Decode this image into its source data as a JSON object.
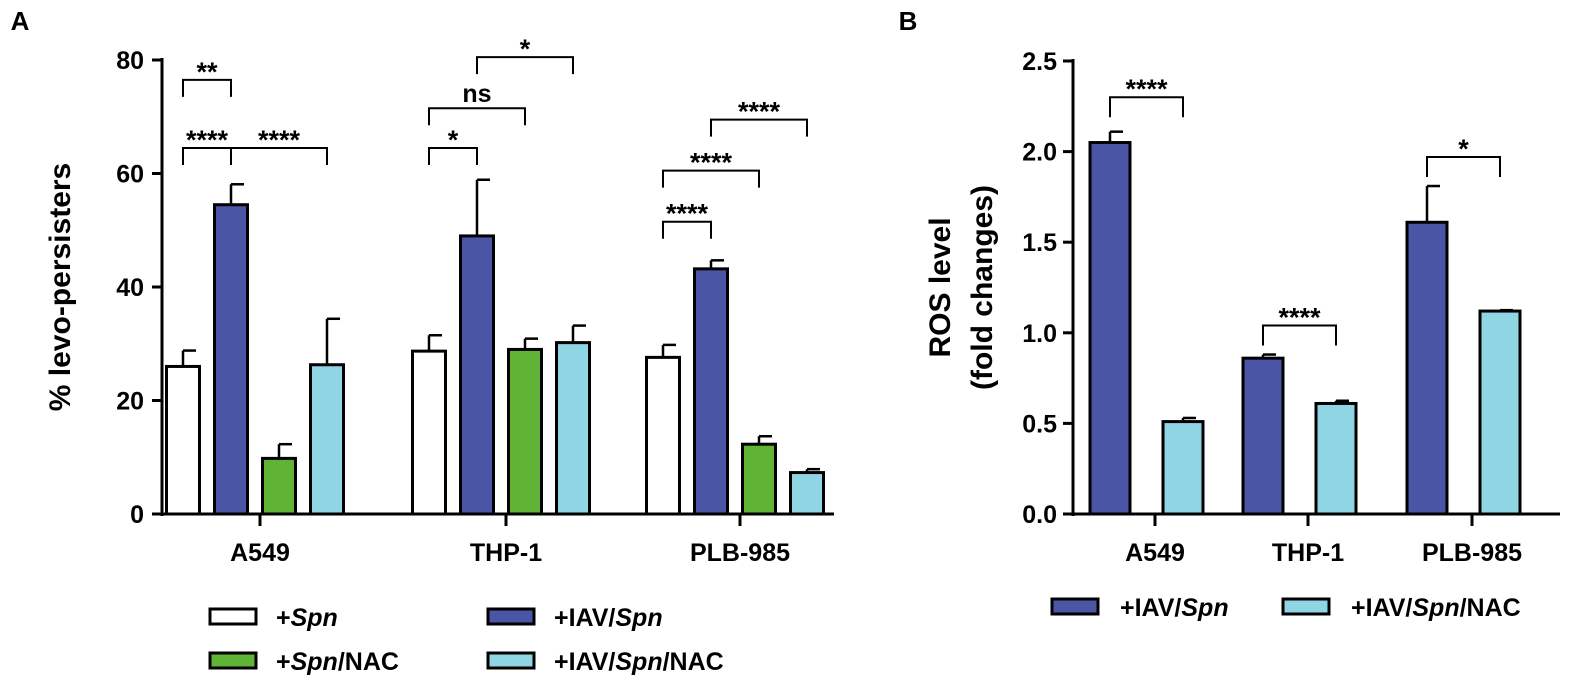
{
  "chart_data": [
    {
      "panel": "A",
      "type": "bar",
      "title": "",
      "ylabel": "% levo-persisters",
      "xlabel": "",
      "ylim": [
        0,
        80
      ],
      "yticks": [
        "0",
        "20",
        "40",
        "60",
        "80"
      ],
      "categories": [
        "A549",
        "THP-1",
        "PLB-985"
      ],
      "series": [
        {
          "name": "+Spn",
          "color": "#ffffff",
          "values": [
            26,
            28.7,
            27.6
          ],
          "errors": [
            2.8,
            2.8,
            2.2
          ]
        },
        {
          "name": "+IAV/Spn",
          "color": "#4a55a6",
          "values": [
            54.5,
            49,
            43.2
          ],
          "errors": [
            3.6,
            9.9,
            1.5
          ]
        },
        {
          "name": "+Spn/NAC",
          "color": "#5fb436",
          "values": [
            9.8,
            29,
            12.3
          ],
          "errors": [
            2.5,
            1.9,
            1.4
          ]
        },
        {
          "name": "+IAV/Spn/NAC",
          "color": "#8fd5e3",
          "values": [
            26.3,
            30.2,
            7.3
          ],
          "errors": [
            8.1,
            3.0,
            0.6
          ]
        }
      ],
      "legend_entries": [
        {
          "prefix": "+",
          "italic": "Spn",
          "suffix": "",
          "color": "#ffffff"
        },
        {
          "prefix": "+IAV/",
          "italic": "Spn",
          "suffix": "",
          "color": "#4a55a6"
        },
        {
          "prefix": "+",
          "italic": "Spn",
          "suffix": "/NAC",
          "color": "#5fb436"
        },
        {
          "prefix": "+IAV/",
          "italic": "Spn",
          "suffix": "/NAC",
          "color": "#8fd5e3"
        }
      ],
      "significance": [
        {
          "group": 0,
          "from": 0,
          "to": 1,
          "label": "**",
          "level": 76.5
        },
        {
          "group": 0,
          "from": 0,
          "to": 1,
          "label": "****",
          "level": 64.5
        },
        {
          "group": 0,
          "from": 1,
          "to": 3,
          "label": "****",
          "level": 64.5
        },
        {
          "group": 1,
          "from": 0,
          "to": 2,
          "label": "ns",
          "level": 71.5
        },
        {
          "group": 1,
          "from": 1,
          "to": 3,
          "label": "*",
          "level": 80.5
        },
        {
          "group": 1,
          "from": 0,
          "to": 1,
          "label": "*",
          "level": 64.5
        },
        {
          "group": 2,
          "from": 0,
          "to": 2,
          "label": "****",
          "level": 60.5
        },
        {
          "group": 2,
          "from": 1,
          "to": 3,
          "label": "****",
          "level": 69.5
        },
        {
          "group": 2,
          "from": 0,
          "to": 1,
          "label": "****",
          "level": 51.5
        }
      ]
    },
    {
      "panel": "B",
      "type": "bar",
      "title": "",
      "ylabel_lines": [
        "ROS level",
        "(fold changes)"
      ],
      "xlabel": "",
      "ylim": [
        0,
        2.5
      ],
      "yticks": [
        "0.0",
        "0.5",
        "1.0",
        "1.5",
        "2.0",
        "2.5"
      ],
      "categories": [
        "A549",
        "THP-1",
        "PLB-985"
      ],
      "series": [
        {
          "name": "+IAV/Spn",
          "color": "#4a55a6",
          "values": [
            2.05,
            0.86,
            1.61
          ],
          "errors": [
            0.06,
            0.02,
            0.2
          ]
        },
        {
          "name": "+IAV/Spn/NAC",
          "color": "#8fd5e3",
          "values": [
            0.51,
            0.61,
            1.12
          ],
          "errors": [
            0.02,
            0.015,
            0.005
          ]
        }
      ],
      "legend_entries": [
        {
          "prefix": "+IAV/",
          "italic": "Spn",
          "suffix": "",
          "color": "#4a55a6"
        },
        {
          "prefix": "+IAV/",
          "italic": "Spn",
          "suffix": "/NAC",
          "color": "#8fd5e3"
        }
      ],
      "significance": [
        {
          "group": 0,
          "from": 0,
          "to": 1,
          "label": "****",
          "level": 2.3
        },
        {
          "group": 1,
          "from": 0,
          "to": 1,
          "label": "****",
          "level": 1.04
        },
        {
          "group": 2,
          "from": 0,
          "to": 1,
          "label": "*",
          "level": 1.97
        }
      ]
    }
  ],
  "panel_labels": [
    "A",
    "B"
  ]
}
